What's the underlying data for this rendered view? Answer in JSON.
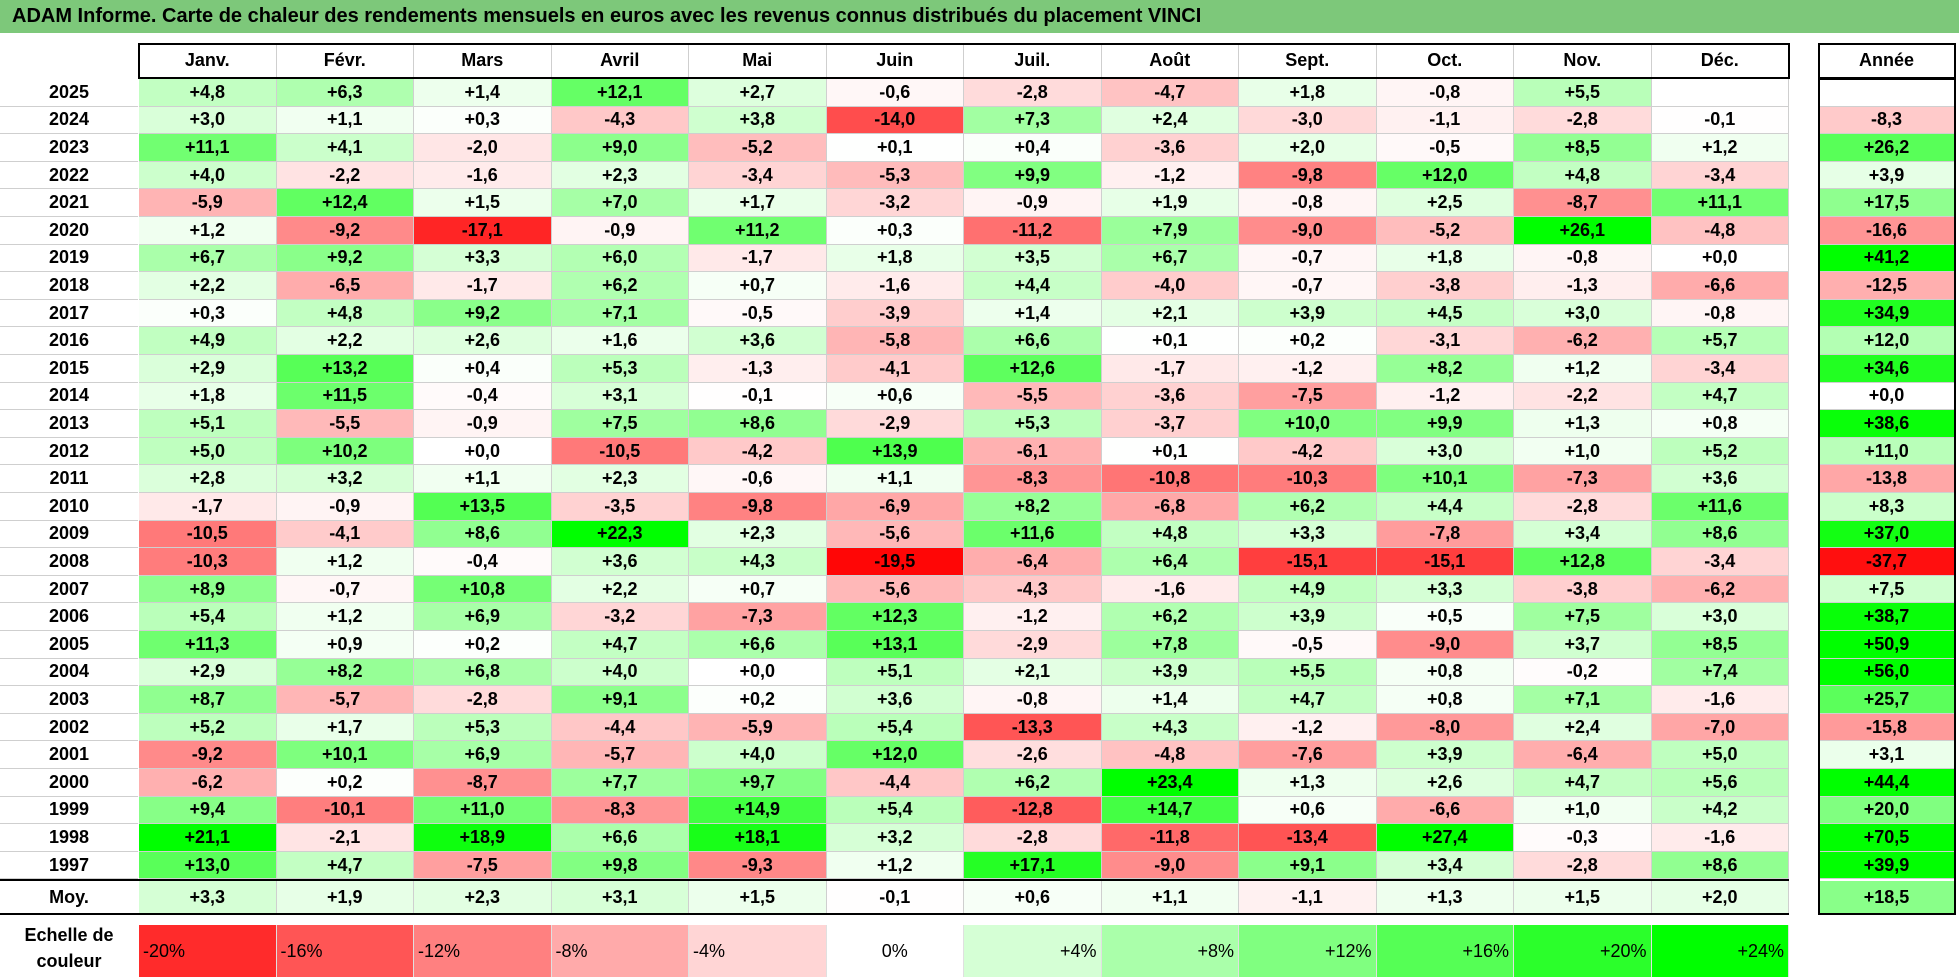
{
  "title": "ADAM Informe. Carte de chaleur des rendements mensuels en euros avec les revenus connus distribués du placement VINCI",
  "chart_data": {
    "type": "heatmap",
    "title": "ADAM Informe. Carte de chaleur des rendements mensuels en euros avec les revenus connus distribués du placement VINCI",
    "months": [
      "Janv.",
      "Févr.",
      "Mars",
      "Avril",
      "Mai",
      "Juin",
      "Juil.",
      "Août",
      "Sept.",
      "Oct.",
      "Nov.",
      "Déc."
    ],
    "year_header": "Année",
    "avg_label": "Moy.",
    "rows": [
      {
        "year": "2025",
        "values": [
          "+4,8",
          "+6,3",
          "+1,4",
          "+12,1",
          "+2,7",
          "-0,6",
          "-2,8",
          "-4,7",
          "+1,8",
          "-0,8",
          "+5,5",
          ""
        ],
        "annual": ""
      },
      {
        "year": "2024",
        "values": [
          "+3,0",
          "+1,1",
          "+0,3",
          "-4,3",
          "+3,8",
          "-14,0",
          "+7,3",
          "+2,4",
          "-3,0",
          "-1,1",
          "-2,8",
          "-0,1"
        ],
        "annual": "-8,3"
      },
      {
        "year": "2023",
        "values": [
          "+11,1",
          "+4,1",
          "-2,0",
          "+9,0",
          "-5,2",
          "+0,1",
          "+0,4",
          "-3,6",
          "+2,0",
          "-0,5",
          "+8,5",
          "+1,2"
        ],
        "annual": "+26,2"
      },
      {
        "year": "2022",
        "values": [
          "+4,0",
          "-2,2",
          "-1,6",
          "+2,3",
          "-3,4",
          "-5,3",
          "+9,9",
          "-1,2",
          "-9,8",
          "+12,0",
          "+4,8",
          "-3,4"
        ],
        "annual": "+3,9"
      },
      {
        "year": "2021",
        "values": [
          "-5,9",
          "+12,4",
          "+1,5",
          "+7,0",
          "+1,7",
          "-3,2",
          "-0,9",
          "+1,9",
          "-0,8",
          "+2,5",
          "-8,7",
          "+11,1"
        ],
        "annual": "+17,5"
      },
      {
        "year": "2020",
        "values": [
          "+1,2",
          "-9,2",
          "-17,1",
          "-0,9",
          "+11,2",
          "+0,3",
          "-11,2",
          "+7,9",
          "-9,0",
          "-5,2",
          "+26,1",
          "-4,8"
        ],
        "annual": "-16,6"
      },
      {
        "year": "2019",
        "values": [
          "+6,7",
          "+9,2",
          "+3,3",
          "+6,0",
          "-1,7",
          "+1,8",
          "+3,5",
          "+6,7",
          "-0,7",
          "+1,8",
          "-0,8",
          "+0,0"
        ],
        "annual": "+41,2"
      },
      {
        "year": "2018",
        "values": [
          "+2,2",
          "-6,5",
          "-1,7",
          "+6,2",
          "+0,7",
          "-1,6",
          "+4,4",
          "-4,0",
          "-0,7",
          "-3,8",
          "-1,3",
          "-6,6"
        ],
        "annual": "-12,5"
      },
      {
        "year": "2017",
        "values": [
          "+0,3",
          "+4,8",
          "+9,2",
          "+7,1",
          "-0,5",
          "-3,9",
          "+1,4",
          "+2,1",
          "+3,9",
          "+4,5",
          "+3,0",
          "-0,8"
        ],
        "annual": "+34,9"
      },
      {
        "year": "2016",
        "values": [
          "+4,9",
          "+2,2",
          "+2,6",
          "+1,6",
          "+3,6",
          "-5,8",
          "+6,6",
          "+0,1",
          "+0,2",
          "-3,1",
          "-6,2",
          "+5,7"
        ],
        "annual": "+12,0"
      },
      {
        "year": "2015",
        "values": [
          "+2,9",
          "+13,2",
          "+0,4",
          "+5,3",
          "-1,3",
          "-4,1",
          "+12,6",
          "-1,7",
          "-1,2",
          "+8,2",
          "+1,2",
          "-3,4"
        ],
        "annual": "+34,6"
      },
      {
        "year": "2014",
        "values": [
          "+1,8",
          "+11,5",
          "-0,4",
          "+3,1",
          "-0,1",
          "+0,6",
          "-5,5",
          "-3,6",
          "-7,5",
          "-1,2",
          "-2,2",
          "+4,7"
        ],
        "annual": "+0,0"
      },
      {
        "year": "2013",
        "values": [
          "+5,1",
          "-5,5",
          "-0,9",
          "+7,5",
          "+8,6",
          "-2,9",
          "+5,3",
          "-3,7",
          "+10,0",
          "+9,9",
          "+1,3",
          "+0,8"
        ],
        "annual": "+38,6"
      },
      {
        "year": "2012",
        "values": [
          "+5,0",
          "+10,2",
          "+0,0",
          "-10,5",
          "-4,2",
          "+13,9",
          "-6,1",
          "+0,1",
          "-4,2",
          "+3,0",
          "+1,0",
          "+5,2"
        ],
        "annual": "+11,0"
      },
      {
        "year": "2011",
        "values": [
          "+2,8",
          "+3,2",
          "+1,1",
          "+2,3",
          "-0,6",
          "+1,1",
          "-8,3",
          "-10,8",
          "-10,3",
          "+10,1",
          "-7,3",
          "+3,6"
        ],
        "annual": "-13,8"
      },
      {
        "year": "2010",
        "values": [
          "-1,7",
          "-0,9",
          "+13,5",
          "-3,5",
          "-9,8",
          "-6,9",
          "+8,2",
          "-6,8",
          "+6,2",
          "+4,4",
          "-2,8",
          "+11,6"
        ],
        "annual": "+8,3"
      },
      {
        "year": "2009",
        "values": [
          "-10,5",
          "-4,1",
          "+8,6",
          "+22,3",
          "+2,3",
          "-5,6",
          "+11,6",
          "+4,8",
          "+3,3",
          "-7,8",
          "+3,4",
          "+8,6"
        ],
        "annual": "+37,0"
      },
      {
        "year": "2008",
        "values": [
          "-10,3",
          "+1,2",
          "-0,4",
          "+3,6",
          "+4,3",
          "-19,5",
          "-6,4",
          "+6,4",
          "-15,1",
          "-15,1",
          "+12,8",
          "-3,4"
        ],
        "annual": "-37,7"
      },
      {
        "year": "2007",
        "values": [
          "+8,9",
          "-0,7",
          "+10,8",
          "+2,2",
          "+0,7",
          "-5,6",
          "-4,3",
          "-1,6",
          "+4,9",
          "+3,3",
          "-3,8",
          "-6,2"
        ],
        "annual": "+7,5"
      },
      {
        "year": "2006",
        "values": [
          "+5,4",
          "+1,2",
          "+6,9",
          "-3,2",
          "-7,3",
          "+12,3",
          "-1,2",
          "+6,2",
          "+3,9",
          "+0,5",
          "+7,5",
          "+3,0"
        ],
        "annual": "+38,7"
      },
      {
        "year": "2005",
        "values": [
          "+11,3",
          "+0,9",
          "+0,2",
          "+4,7",
          "+6,6",
          "+13,1",
          "-2,9",
          "+7,8",
          "-0,5",
          "-9,0",
          "+3,7",
          "+8,5"
        ],
        "annual": "+50,9"
      },
      {
        "year": "2004",
        "values": [
          "+2,9",
          "+8,2",
          "+6,8",
          "+4,0",
          "+0,0",
          "+5,1",
          "+2,1",
          "+3,9",
          "+5,5",
          "+0,8",
          "-0,2",
          "+7,4"
        ],
        "annual": "+56,0"
      },
      {
        "year": "2003",
        "values": [
          "+8,7",
          "-5,7",
          "-2,8",
          "+9,1",
          "+0,2",
          "+3,6",
          "-0,8",
          "+1,4",
          "+4,7",
          "+0,8",
          "+7,1",
          "-1,6"
        ],
        "annual": "+25,7"
      },
      {
        "year": "2002",
        "values": [
          "+5,2",
          "+1,7",
          "+5,3",
          "-4,4",
          "-5,9",
          "+5,4",
          "-13,3",
          "+4,3",
          "-1,2",
          "-8,0",
          "+2,4",
          "-7,0"
        ],
        "annual": "-15,8"
      },
      {
        "year": "2001",
        "values": [
          "-9,2",
          "+10,1",
          "+6,9",
          "-5,7",
          "+4,0",
          "+12,0",
          "-2,6",
          "-4,8",
          "-7,6",
          "+3,9",
          "-6,4",
          "+5,0"
        ],
        "annual": "+3,1"
      },
      {
        "year": "2000",
        "values": [
          "-6,2",
          "+0,2",
          "-8,7",
          "+7,7",
          "+9,7",
          "-4,4",
          "+6,2",
          "+23,4",
          "+1,3",
          "+2,6",
          "+4,7",
          "+5,6"
        ],
        "annual": "+44,4"
      },
      {
        "year": "1999",
        "values": [
          "+9,4",
          "-10,1",
          "+11,0",
          "-8,3",
          "+14,9",
          "+5,4",
          "-12,8",
          "+14,7",
          "+0,6",
          "-6,6",
          "+1,0",
          "+4,2"
        ],
        "annual": "+20,0"
      },
      {
        "year": "1998",
        "values": [
          "+21,1",
          "-2,1",
          "+18,9",
          "+6,6",
          "+18,1",
          "+3,2",
          "-2,8",
          "-11,8",
          "-13,4",
          "+27,4",
          "-0,3",
          "-1,6"
        ],
        "annual": "+70,5"
      },
      {
        "year": "1997",
        "values": [
          "+13,0",
          "+4,7",
          "-7,5",
          "+9,8",
          "-9,3",
          "+1,2",
          "+17,1",
          "-9,0",
          "+9,1",
          "+3,4",
          "-2,8",
          "+8,6"
        ],
        "annual": "+39,9"
      }
    ],
    "averages": [
      "+3,3",
      "+1,9",
      "+2,3",
      "+3,1",
      "+1,5",
      "-0,1",
      "+0,6",
      "+1,1",
      "-1,1",
      "+1,3",
      "+1,5",
      "+2,0"
    ],
    "average_annual": "+18,5",
    "scale_label": "Echelle de couleur",
    "scale": [
      {
        "label": "-20%",
        "value": -20
      },
      {
        "label": "-16%",
        "value": -16
      },
      {
        "label": "-12%",
        "value": -12
      },
      {
        "label": "-8%",
        "value": -8
      },
      {
        "label": "-4%",
        "value": -4
      },
      {
        "label": "0%",
        "value": 0
      },
      {
        "label": "+4%",
        "value": 4
      },
      {
        "label": "+8%",
        "value": 8
      },
      {
        "label": "+12%",
        "value": 12
      },
      {
        "label": "+16%",
        "value": 16
      },
      {
        "label": "+20%",
        "value": 20
      },
      {
        "label": "+24%",
        "value": 24
      }
    ],
    "colors": {
      "title_bg": "#7dc87a",
      "negative_max": "#ff0000",
      "neutral": "#ffffff",
      "positive_max": "#00ff00"
    }
  }
}
